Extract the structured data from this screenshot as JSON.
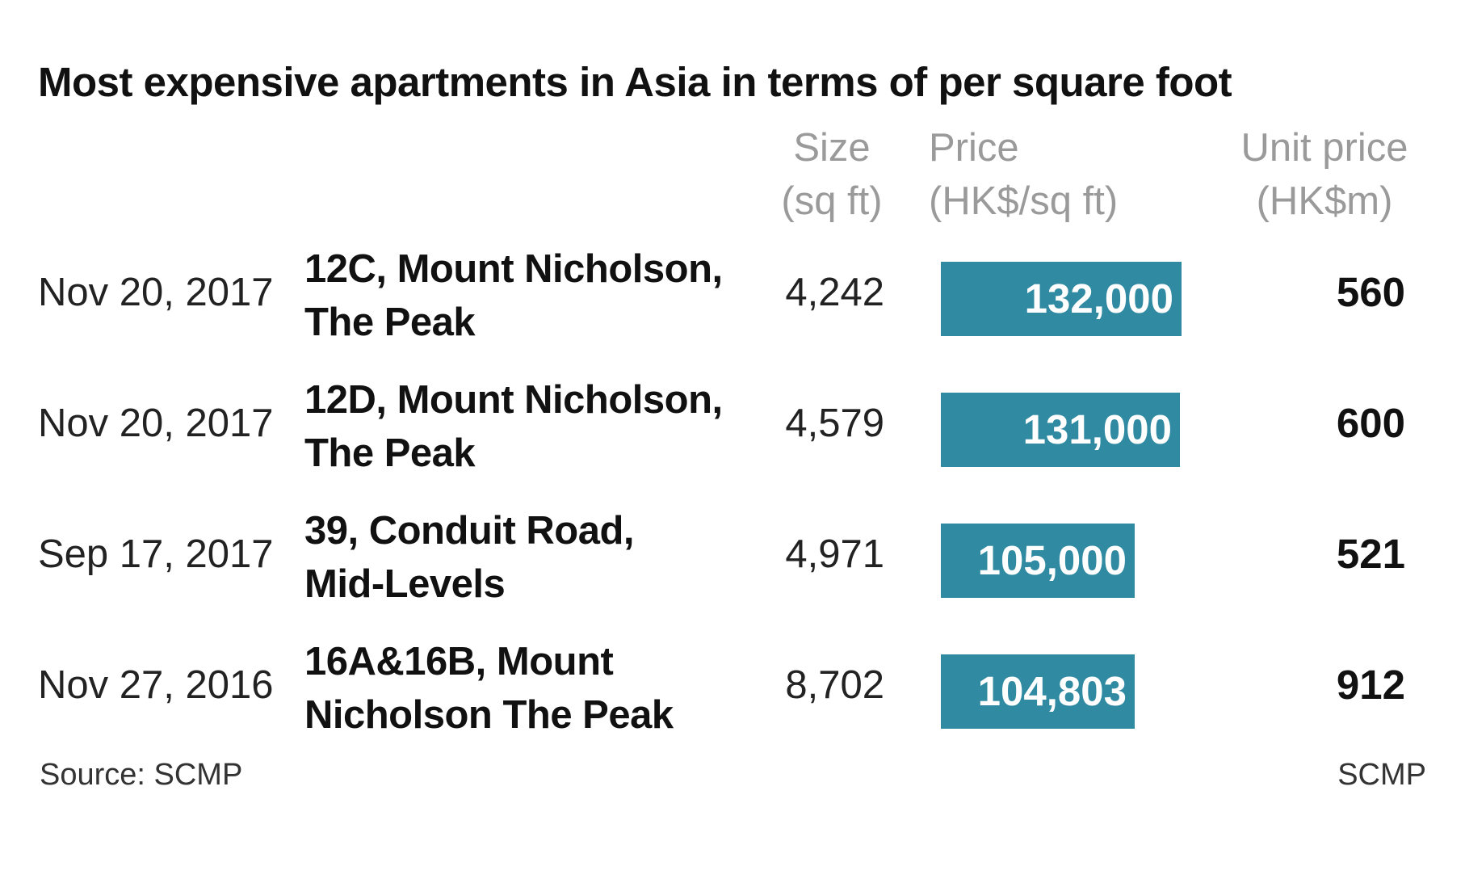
{
  "title": "Most expensive apartments in Asia in terms of per square foot",
  "columns": {
    "size": [
      "Size",
      "(sq ft)"
    ],
    "price": [
      "Price",
      "(HK$/sq ft)"
    ],
    "unit_price": [
      "Unit price",
      "(HK$m)"
    ]
  },
  "footer": {
    "source": "Source: SCMP",
    "credit": "SCMP"
  },
  "colors": {
    "bar": "#2f8aa2",
    "header_text": "#9a9a9a"
  },
  "chart_data": {
    "type": "table",
    "title": "Most expensive apartments in Asia in terms of per square foot",
    "columns": [
      "",
      "",
      "Size (sq ft)",
      "Price (HK$/sq ft)",
      "Unit price (HK$m)"
    ],
    "price_bar_scale": [
      0,
      132000
    ],
    "rows": [
      {
        "date": "Nov 20, 2017",
        "name": [
          "12C, Mount Nicholson,",
          "The Peak"
        ],
        "size": "4,242",
        "price": 132000,
        "price_label": "132,000",
        "unit_price": "560"
      },
      {
        "date": "Nov 20, 2017",
        "name": [
          "12D, Mount Nicholson,",
          "The Peak"
        ],
        "size": "4,579",
        "price": 131000,
        "price_label": "131,000",
        "unit_price": "600"
      },
      {
        "date": "Sep 17, 2017",
        "name": [
          "39, Conduit Road,",
          "Mid-Levels"
        ],
        "size": "4,971",
        "price": 105000,
        "price_label": "105,000",
        "unit_price": "521"
      },
      {
        "date": "Nov 27, 2016",
        "name": [
          "16A&16B, Mount",
          "Nicholson The Peak"
        ],
        "size": "8,702",
        "price": 104803,
        "price_label": "104,803",
        "unit_price": "912"
      }
    ]
  }
}
